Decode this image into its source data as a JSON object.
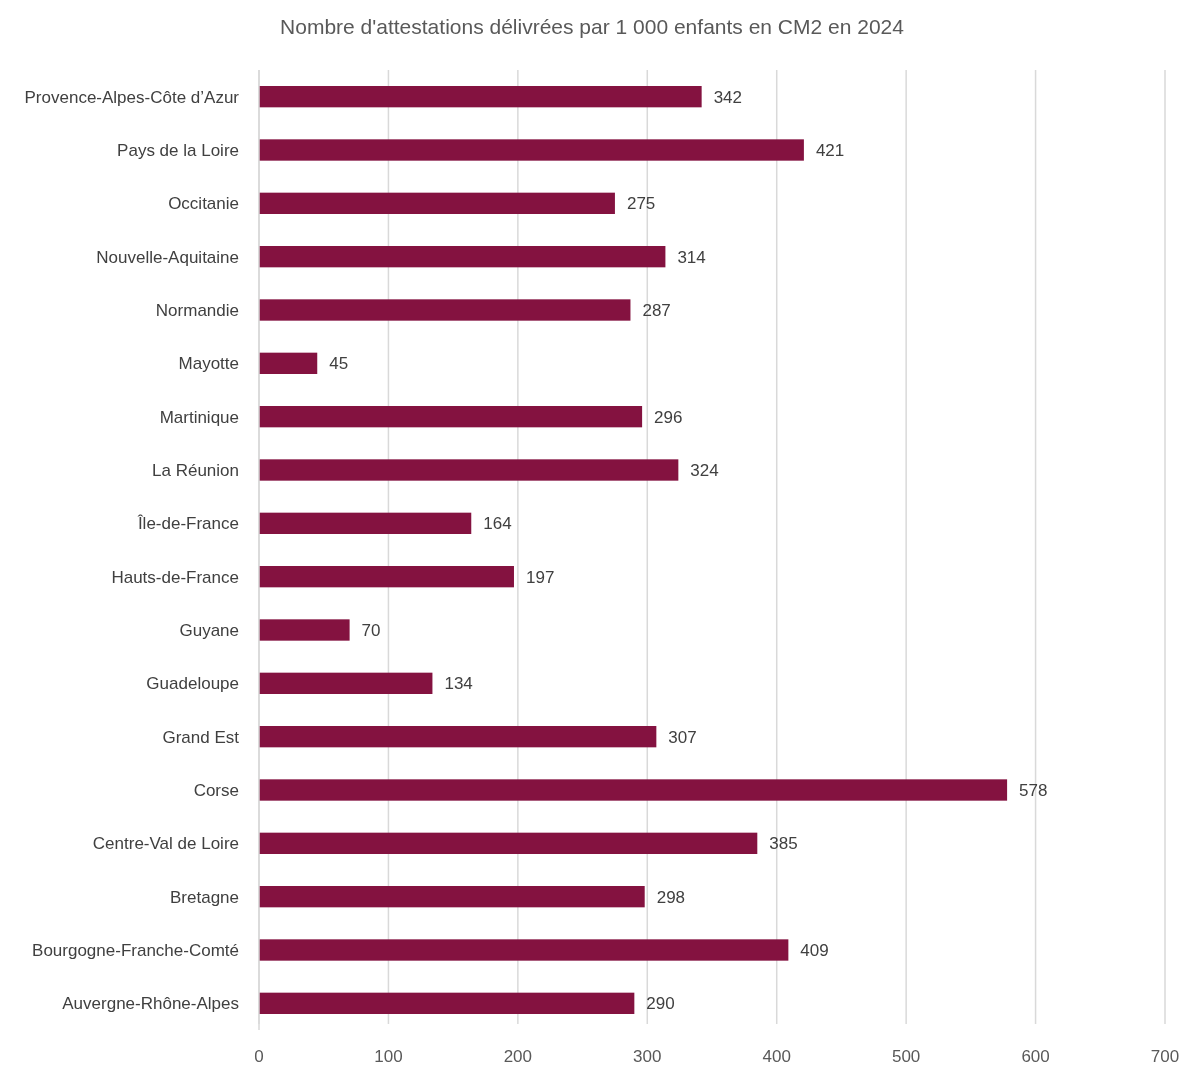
{
  "chart_data": {
    "type": "bar",
    "orientation": "horizontal",
    "title": "Nombre d'attestations délivrées par 1 000 enfants en CM2 en 2024",
    "categories": [
      "Provence-Alpes-Côte d’Azur",
      "Pays de la Loire",
      "Occitanie",
      "Nouvelle-Aquitaine",
      "Normandie",
      "Mayotte",
      "Martinique",
      "La Réunion",
      "Île-de-France",
      "Hauts-de-France",
      "Guyane",
      "Guadeloupe",
      "Grand Est",
      "Corse",
      "Centre-Val de Loire",
      "Bretagne",
      "Bourgogne-Franche-Comté",
      "Auvergne-Rhône-Alpes"
    ],
    "values": [
      342,
      421,
      275,
      314,
      287,
      45,
      296,
      324,
      164,
      197,
      70,
      134,
      307,
      578,
      385,
      298,
      409,
      290
    ],
    "color": "#841240",
    "xlim": [
      0,
      700
    ],
    "xticks": [
      0,
      100,
      200,
      300,
      400,
      500,
      600,
      700
    ],
    "grid": "x",
    "data_labels": true
  }
}
